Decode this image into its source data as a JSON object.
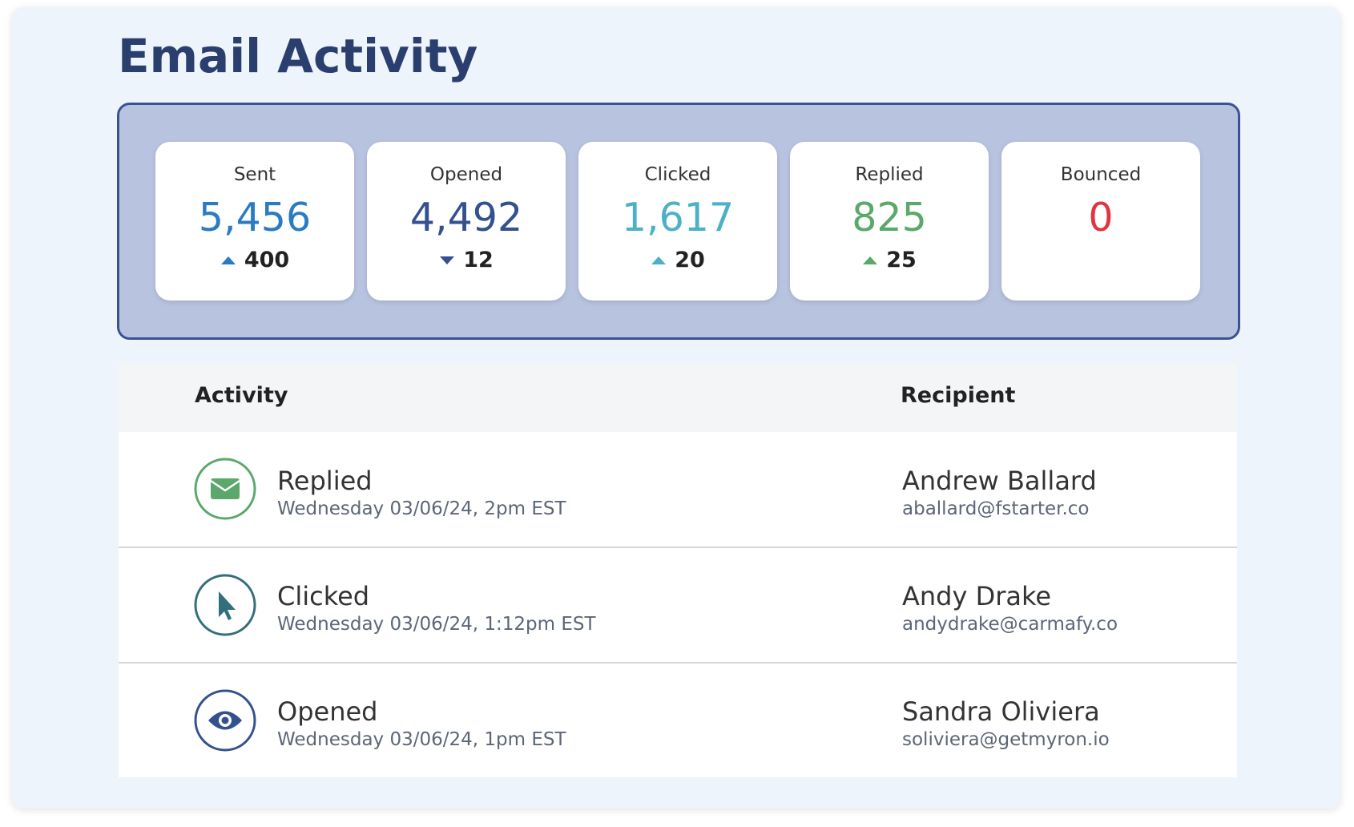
{
  "header": {
    "title": "Email Activity"
  },
  "stats": [
    {
      "label": "Sent",
      "value": "5,456",
      "change": "400",
      "trend": "up",
      "color": "#2a7bc4",
      "arrow_color": "#2a7bc4"
    },
    {
      "label": "Opened",
      "value": "4,492",
      "change": "12",
      "trend": "down",
      "color": "#34508e",
      "arrow_color": "#34508e"
    },
    {
      "label": "Clicked",
      "value": "1,617",
      "change": "20",
      "trend": "up",
      "color": "#4db0c6",
      "arrow_color": "#4db0c6"
    },
    {
      "label": "Replied",
      "value": "825",
      "change": "25",
      "trend": "up",
      "color": "#5aa86a",
      "arrow_color": "#5aa86a"
    },
    {
      "label": "Bounced",
      "value": "0",
      "color": "#e0343f"
    }
  ],
  "table": {
    "columns": [
      "Activity",
      "Recipient"
    ],
    "rows": [
      {
        "activity": "Replied",
        "time": "Wednesday 03/06/24, 2pm EST",
        "name": "Andrew Ballard",
        "email": "aballard@fstarter.co"
      },
      {
        "activity": "Clicked",
        "time": "Wednesday 03/06/24, 1:12pm EST",
        "name": "Andy Drake",
        "email": "andydrake@carmafy.co"
      },
      {
        "activity": "Opened",
        "time": "Wednesday 03/06/24, 1pm EST",
        "name": "Sandra Oliviera",
        "email": "soliviera@getmyron.io"
      }
    ]
  }
}
